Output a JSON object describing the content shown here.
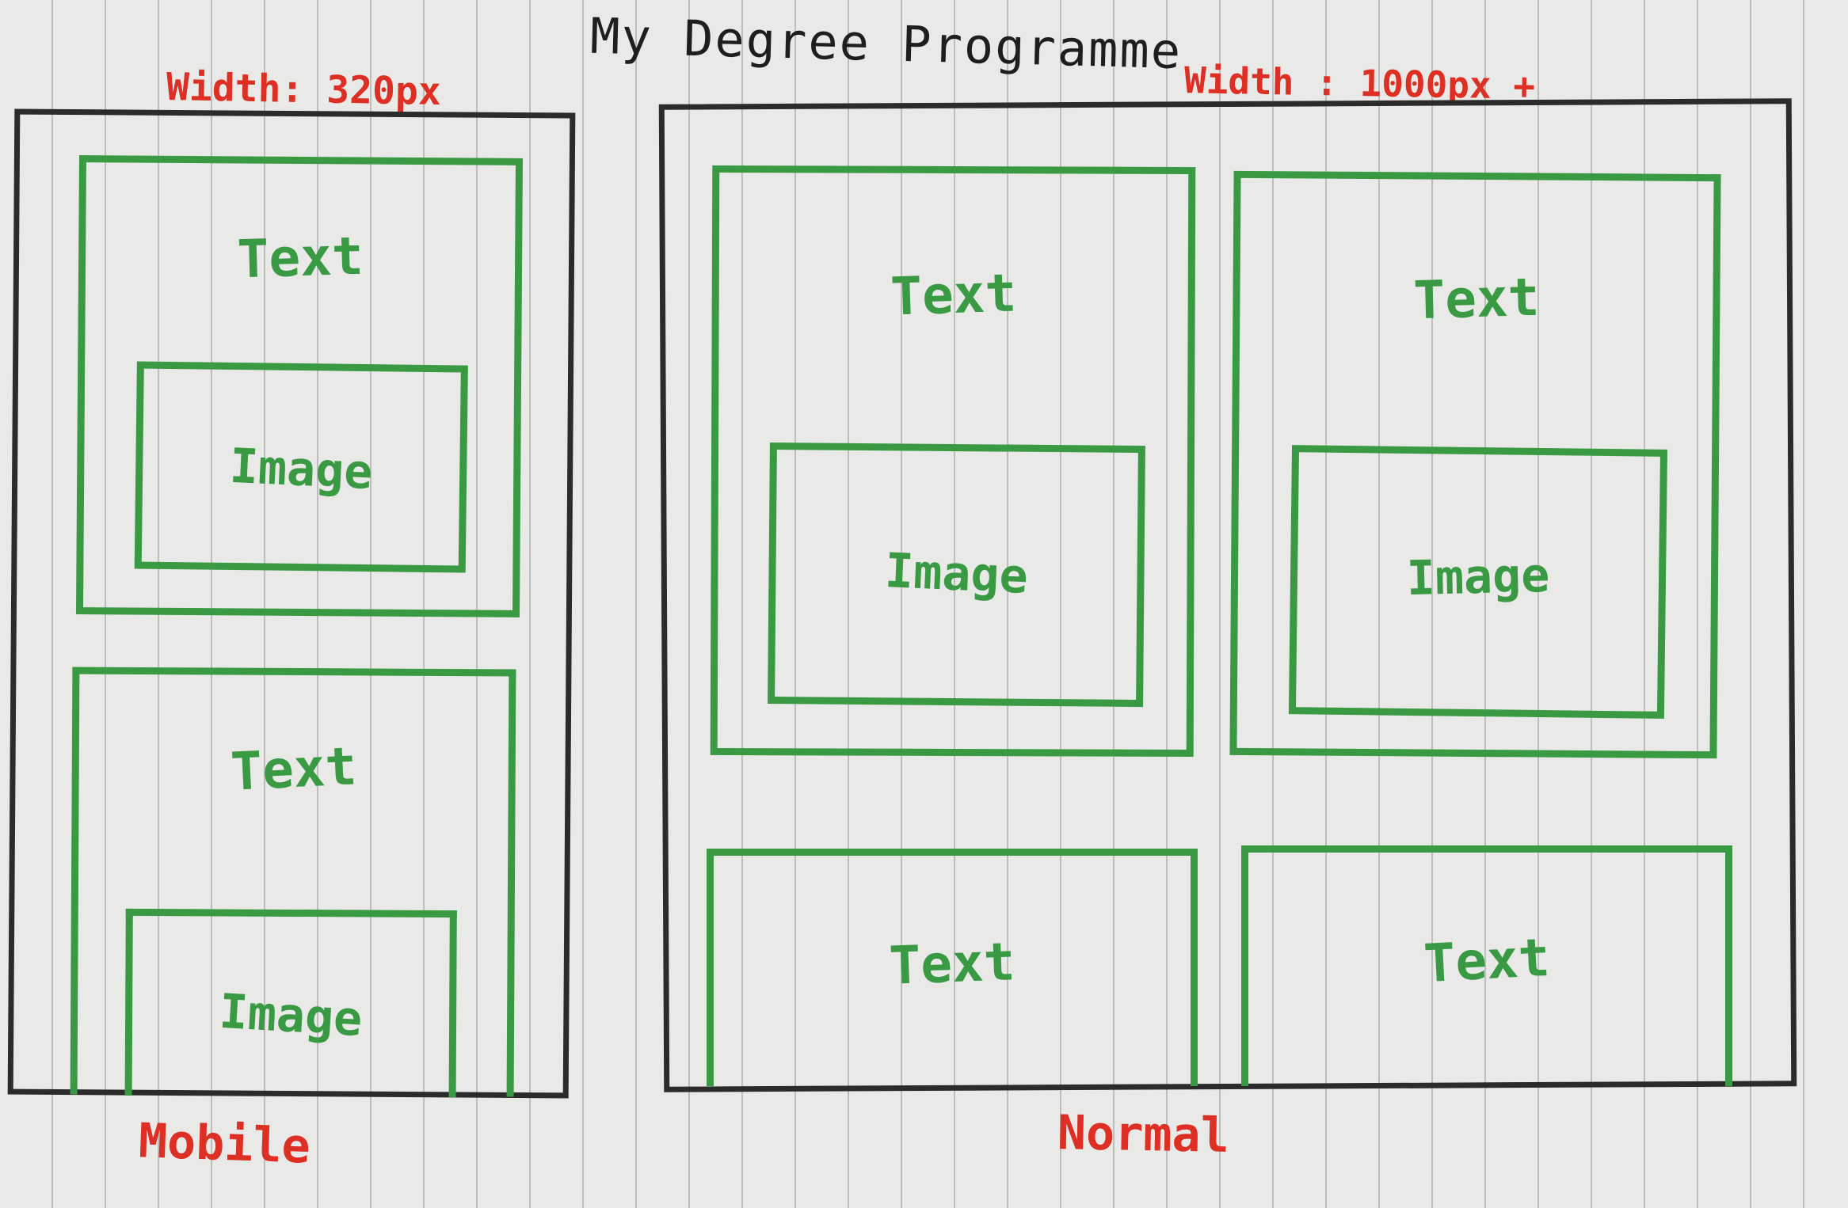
{
  "title": "My Degree Programme",
  "mobile": {
    "width_note": "Width: 320px",
    "caption": "Mobile",
    "cards": [
      {
        "text": "Text",
        "image": "Image"
      },
      {
        "text": "Text",
        "image": "Image"
      }
    ]
  },
  "normal": {
    "width_note": "Width : 1000px +",
    "caption": "Normal",
    "cards": [
      {
        "text": "Text",
        "image": "Image"
      },
      {
        "text": "Text",
        "image": "Image"
      },
      {
        "text": "Text"
      },
      {
        "text": "Text"
      }
    ]
  },
  "colors": {
    "ink": "#2b2b2b",
    "green_marker": "#3a9a44",
    "red_marker": "#dd2f24",
    "paper": "#e9e9e7"
  }
}
